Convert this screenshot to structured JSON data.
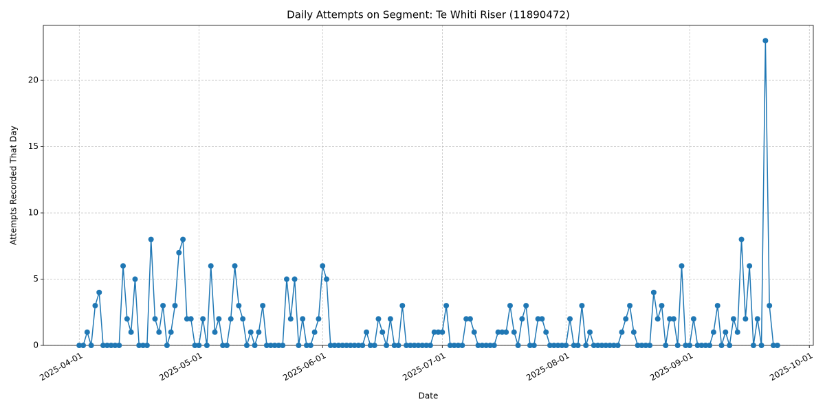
{
  "chart_data": {
    "type": "line",
    "title": "Daily Attempts on Segment: Te Whiti Riser (11890472)",
    "x_label": "Date",
    "y_label": "Attempts Recorded That Day",
    "color": "#1f77b4",
    "grid": true,
    "x": [
      "2025-04-01",
      "2025-04-02",
      "2025-04-03",
      "2025-04-04",
      "2025-04-05",
      "2025-04-06",
      "2025-04-07",
      "2025-04-08",
      "2025-04-09",
      "2025-04-10",
      "2025-04-11",
      "2025-04-12",
      "2025-04-13",
      "2025-04-14",
      "2025-04-15",
      "2025-04-16",
      "2025-04-17",
      "2025-04-18",
      "2025-04-19",
      "2025-04-20",
      "2025-04-21",
      "2025-04-22",
      "2025-04-23",
      "2025-04-24",
      "2025-04-25",
      "2025-04-26",
      "2025-04-27",
      "2025-04-28",
      "2025-04-29",
      "2025-04-30",
      "2025-05-01",
      "2025-05-02",
      "2025-05-03",
      "2025-05-04",
      "2025-05-05",
      "2025-05-06",
      "2025-05-07",
      "2025-05-08",
      "2025-05-09",
      "2025-05-10",
      "2025-05-11",
      "2025-05-12",
      "2025-05-13",
      "2025-05-14",
      "2025-05-15",
      "2025-05-16",
      "2025-05-17",
      "2025-05-18",
      "2025-05-19",
      "2025-05-20",
      "2025-05-21",
      "2025-05-22",
      "2025-05-23",
      "2025-05-24",
      "2025-05-25",
      "2025-05-26",
      "2025-05-27",
      "2025-05-28",
      "2025-05-29",
      "2025-05-30",
      "2025-05-31",
      "2025-06-01",
      "2025-06-02",
      "2025-06-03",
      "2025-06-04",
      "2025-06-05",
      "2025-06-06",
      "2025-06-07",
      "2025-06-08",
      "2025-06-09",
      "2025-06-10",
      "2025-06-11",
      "2025-06-12",
      "2025-06-13",
      "2025-06-14",
      "2025-06-15",
      "2025-06-16",
      "2025-06-17",
      "2025-06-18",
      "2025-06-19",
      "2025-06-20",
      "2025-06-21",
      "2025-06-22",
      "2025-06-23",
      "2025-06-24",
      "2025-06-25",
      "2025-06-26",
      "2025-06-27",
      "2025-06-28",
      "2025-06-29",
      "2025-06-30",
      "2025-07-01",
      "2025-07-02",
      "2025-07-03",
      "2025-07-04",
      "2025-07-05",
      "2025-07-06",
      "2025-07-07",
      "2025-07-08",
      "2025-07-09",
      "2025-07-10",
      "2025-07-11",
      "2025-07-12",
      "2025-07-13",
      "2025-07-14",
      "2025-07-15",
      "2025-07-16",
      "2025-07-17",
      "2025-07-18",
      "2025-07-19",
      "2025-07-20",
      "2025-07-21",
      "2025-07-22",
      "2025-07-23",
      "2025-07-24",
      "2025-07-25",
      "2025-07-26",
      "2025-07-27",
      "2025-07-28",
      "2025-07-29",
      "2025-07-30",
      "2025-07-31",
      "2025-08-01",
      "2025-08-02",
      "2025-08-03",
      "2025-08-04",
      "2025-08-05",
      "2025-08-06",
      "2025-08-07",
      "2025-08-08",
      "2025-08-09",
      "2025-08-10",
      "2025-08-11",
      "2025-08-12",
      "2025-08-13",
      "2025-08-14",
      "2025-08-15",
      "2025-08-16",
      "2025-08-17",
      "2025-08-18",
      "2025-08-19",
      "2025-08-20",
      "2025-08-21",
      "2025-08-22",
      "2025-08-23",
      "2025-08-24",
      "2025-08-25",
      "2025-08-26",
      "2025-08-27",
      "2025-08-28",
      "2025-08-29",
      "2025-08-30",
      "2025-08-31",
      "2025-09-01",
      "2025-09-02",
      "2025-09-03",
      "2025-09-04",
      "2025-09-05",
      "2025-09-06",
      "2025-09-07",
      "2025-09-08",
      "2025-09-09",
      "2025-09-10",
      "2025-09-11",
      "2025-09-12",
      "2025-09-13",
      "2025-09-14",
      "2025-09-15",
      "2025-09-16",
      "2025-09-17",
      "2025-09-18",
      "2025-09-19",
      "2025-09-20",
      "2025-09-21",
      "2025-09-22",
      "2025-09-23"
    ],
    "values": [
      0,
      0,
      1,
      0,
      3,
      4,
      0,
      0,
      0,
      0,
      0,
      6,
      2,
      1,
      5,
      0,
      0,
      0,
      8,
      2,
      1,
      3,
      0,
      1,
      3,
      7,
      8,
      2,
      2,
      0,
      0,
      2,
      0,
      6,
      1,
      2,
      0,
      0,
      2,
      6,
      3,
      2,
      0,
      1,
      0,
      1,
      3,
      0,
      0,
      0,
      0,
      0,
      5,
      2,
      5,
      0,
      2,
      0,
      0,
      1,
      2,
      6,
      5,
      0,
      0,
      0,
      0,
      0,
      0,
      0,
      0,
      0,
      1,
      0,
      0,
      2,
      1,
      0,
      2,
      0,
      0,
      3,
      0,
      0,
      0,
      0,
      0,
      0,
      0,
      1,
      1,
      1,
      3,
      0,
      0,
      0,
      0,
      2,
      2,
      1,
      0,
      0,
      0,
      0,
      0,
      1,
      1,
      1,
      3,
      1,
      0,
      2,
      3,
      0,
      0,
      2,
      2,
      1,
      0,
      0,
      0,
      0,
      0,
      2,
      0,
      0,
      3,
      0,
      1,
      0,
      0,
      0,
      0,
      0,
      0,
      0,
      1,
      2,
      3,
      1,
      0,
      0,
      0,
      0,
      4,
      2,
      3,
      0,
      2,
      2,
      0,
      6,
      0,
      0,
      2,
      0,
      0,
      0,
      0,
      1,
      3,
      0,
      1,
      0,
      2,
      1,
      8,
      2,
      6,
      0,
      2,
      0,
      23,
      3,
      0,
      0
    ],
    "xlim": [
      "2025-03-23",
      "2025-10-02"
    ],
    "xticks": [
      "2025-04-01",
      "2025-05-01",
      "2025-06-01",
      "2025-07-01",
      "2025-08-01",
      "2025-09-01",
      "2025-10-01"
    ],
    "ylim": [
      0,
      24.15
    ],
    "yticks": [
      0,
      5,
      10,
      15,
      20
    ]
  }
}
